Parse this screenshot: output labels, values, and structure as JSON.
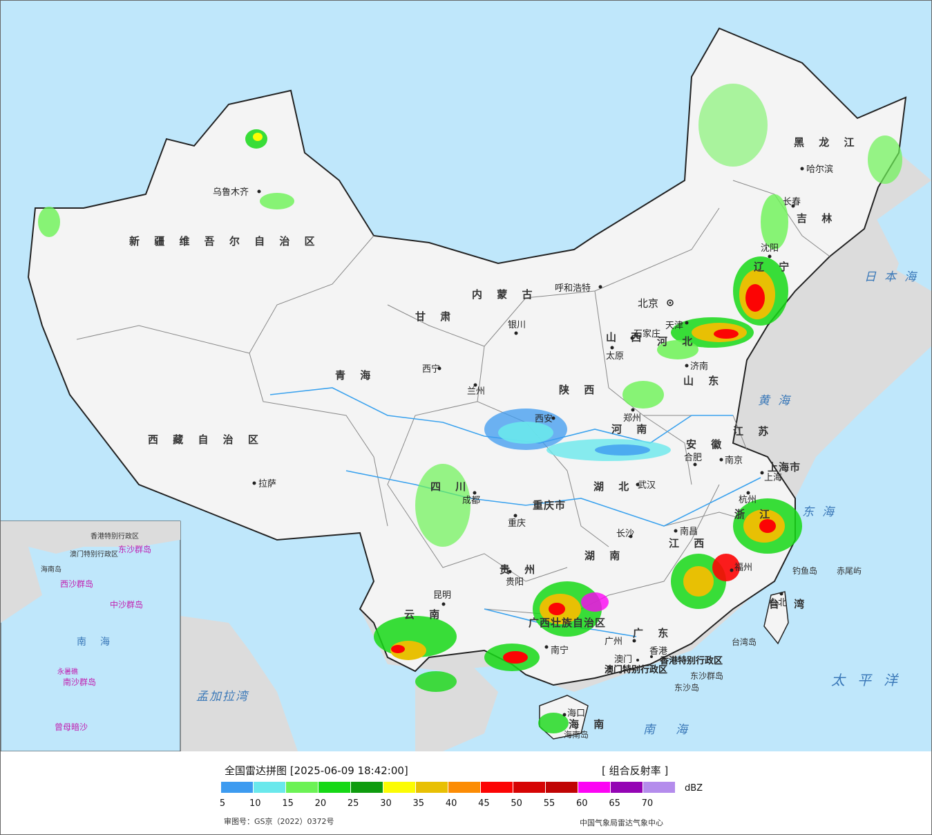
{
  "map": {
    "provinces": [
      {
        "name": "新疆维吾尔自治区",
        "chars": "新 疆 维 吾 尔 自 治 区"
      },
      {
        "name": "西藏自治区",
        "chars": "西 藏 自 治 区"
      },
      {
        "name": "青海",
        "chars": "青 海"
      },
      {
        "name": "甘肃",
        "chars": "甘 肃"
      },
      {
        "name": "内蒙古自治区",
        "chars": "内 蒙 古"
      },
      {
        "name": "黑龙江",
        "chars": "黑 龙 江"
      },
      {
        "name": "吉林",
        "chars": "吉 林"
      },
      {
        "name": "辽宁",
        "chars": "辽 宁"
      },
      {
        "name": "四川",
        "chars": "四 川"
      },
      {
        "name": "云南",
        "chars": "云 南"
      },
      {
        "name": "贵州",
        "chars": "贵 州"
      },
      {
        "name": "陕西",
        "chars": "陕 西"
      },
      {
        "name": "山西",
        "chars": "山 西"
      },
      {
        "name": "河南",
        "chars": "河 南"
      },
      {
        "name": "湖北",
        "chars": "湖 北"
      },
      {
        "name": "湖南",
        "chars": "湖 南"
      },
      {
        "name": "广东",
        "chars": "广 东"
      },
      {
        "name": "江西",
        "chars": "江 西"
      },
      {
        "name": "安徽",
        "chars": "安 徽"
      },
      {
        "name": "山东",
        "chars": "山 东"
      },
      {
        "name": "江苏",
        "chars": "江 苏"
      },
      {
        "name": "浙江",
        "chars": "浙 江"
      },
      {
        "name": "广西壮族自治区",
        "chars": "广西壮族自治区"
      },
      {
        "name": "海南",
        "chars": "海 南"
      },
      {
        "name": "河北",
        "chars": "河 北"
      },
      {
        "name": "重庆市",
        "chars": "重庆市"
      },
      {
        "name": "上海市",
        "chars": "上海市"
      },
      {
        "name": "台湾",
        "chars": "台 湾"
      }
    ],
    "cities": [
      "乌鲁木齐",
      "拉萨",
      "西宁",
      "兰州",
      "银川",
      "呼和浩特",
      "北京",
      "天津",
      "石家庄",
      "太原",
      "济南",
      "郑州",
      "西安",
      "成都",
      "重庆",
      "贵阳",
      "昆明",
      "南宁",
      "广州",
      "澳门",
      "香港",
      "长沙",
      "武汉",
      "南昌",
      "福州",
      "杭州",
      "南京",
      "合肥",
      "上海",
      "哈尔滨",
      "长春",
      "沈阳",
      "台北",
      "海口"
    ],
    "seas": [
      "日本海",
      "黄海",
      "东海",
      "南海",
      "太平洋",
      "孟加拉湾"
    ],
    "islands": [
      "钓鱼岛",
      "赤尾屿",
      "东沙群岛",
      "东沙岛",
      "台湾岛",
      "海南岛"
    ],
    "special_regions": [
      "香港特别行政区",
      "澳门特别行政区"
    ],
    "inset_labels": [
      "南海",
      "南沙群岛",
      "东沙群岛",
      "中沙群岛",
      "西沙群岛",
      "曾母暗沙",
      "香港特别行政区",
      "澳门特别行政区",
      "永暑礁",
      "海南岛"
    ]
  },
  "legend": {
    "title": "全国雷达拼图 [2025-06-09 18:42:00]",
    "product": "[ 组合反射率 ]",
    "unit": "dBZ",
    "colors": [
      "#3d9bf0",
      "#6ae8ec",
      "#6cf255",
      "#16d816",
      "#0e9c0e",
      "#fcfc04",
      "#e8c004",
      "#fc8c04",
      "#fc0404",
      "#d60404",
      "#c00404",
      "#fc04f4",
      "#9404b4",
      "#b48cec"
    ],
    "ticks": [
      "5",
      "10",
      "15",
      "20",
      "25",
      "30",
      "35",
      "40",
      "45",
      "50",
      "55",
      "60",
      "65",
      "70"
    ],
    "approval": "审图号：GS京（2022）0372号",
    "source": "中国气象局雷达气象中心"
  }
}
